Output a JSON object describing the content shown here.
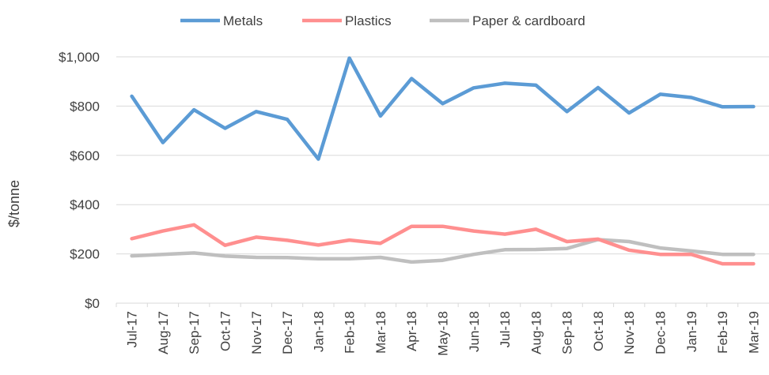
{
  "chart_data": {
    "type": "line",
    "title": "",
    "xlabel": "",
    "ylabel": "$/tonne",
    "categories": [
      "Jul-17",
      "Aug-17",
      "Sep-17",
      "Oct-17",
      "Nov-17",
      "Dec-17",
      "Jan-18",
      "Feb-18",
      "Mar-18",
      "Apr-18",
      "May-18",
      "Jun-18",
      "Jul-18",
      "Aug-18",
      "Sep-18",
      "Oct-18",
      "Nov-18",
      "Dec-18",
      "Jan-19",
      "Feb-19",
      "Mar-19"
    ],
    "ylim": [
      0,
      1000
    ],
    "yticks": [
      0,
      200,
      400,
      600,
      800,
      1000
    ],
    "ytick_labels": [
      "$0",
      "$200",
      "$400",
      "$600",
      "$800",
      "$1,000"
    ],
    "grid": true,
    "legend_position": "top",
    "series": [
      {
        "name": "Metals",
        "color": "#5B9BD5",
        "values": [
          840,
          652,
          785,
          710,
          778,
          746,
          585,
          995,
          760,
          912,
          810,
          874,
          893,
          885,
          778,
          875,
          772,
          848,
          835,
          797,
          798
        ]
      },
      {
        "name": "Plastics",
        "color": "#FF8F8F",
        "values": [
          262,
          293,
          318,
          235,
          268,
          255,
          236,
          256,
          243,
          312,
          312,
          293,
          280,
          300,
          250,
          260,
          215,
          198,
          198,
          160,
          160
        ]
      },
      {
        "name": "Paper & cardboard",
        "color": "#BFBFBF",
        "values": [
          192,
          198,
          204,
          191,
          186,
          185,
          180,
          180,
          186,
          167,
          174,
          198,
          217,
          218,
          222,
          258,
          250,
          224,
          212,
          198,
          198
        ]
      }
    ]
  }
}
